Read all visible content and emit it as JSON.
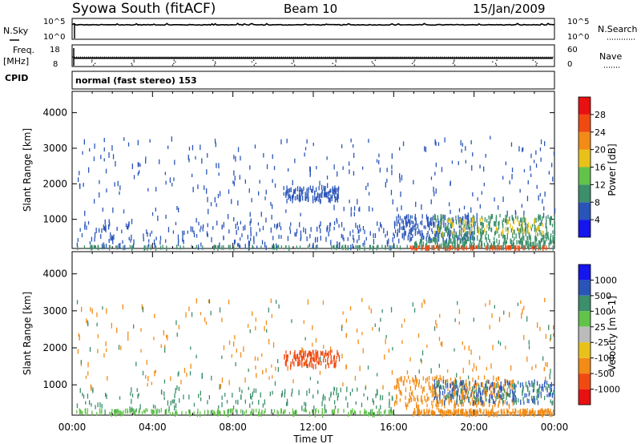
{
  "header": {
    "title": "Syowa South (fitACF)",
    "beam": "Beam 10",
    "date": "15/Jan/2009"
  },
  "chart_data": [
    {
      "type": "line",
      "panel": "noise",
      "left_label": "N.Sky",
      "right_label": "N.Search",
      "left_ticks": [
        "10^5",
        "10^0"
      ],
      "right_ticks": [
        "10^5",
        "10^0"
      ],
      "yscale": "log",
      "note": "noise level, near 10^4 throughout the day"
    },
    {
      "type": "line",
      "panel": "frequency",
      "left_label": "Freq.",
      "left_unit": "[MHz]",
      "left_ticks": [
        "18",
        "8"
      ],
      "left_ylim": [
        8,
        18
      ],
      "right_label": "Nave",
      "right_ticks": [
        "60",
        "0"
      ],
      "right_ylim": [
        0,
        60
      ],
      "freq_mhz": 11.8,
      "nave": 25
    },
    {
      "type": "table",
      "panel": "cpid",
      "label": "CPID",
      "value": "normal (fast stereo) 153"
    },
    {
      "type": "heatmap",
      "panel": "power",
      "ylabel": "Slant Range [km]",
      "xlim_hours": [
        0,
        24
      ],
      "ylim_km": [
        180,
        4600
      ],
      "yticks": [
        "1000",
        "2000",
        "3000",
        "4000"
      ],
      "colorbar_label": "Power [dB]",
      "colorbar_ticks": [
        "4",
        "8",
        "12",
        "16",
        "20",
        "24",
        "28"
      ],
      "colorbar_colors": [
        "#1515ee",
        "#2a55b8",
        "#3b8f6a",
        "#62c24a",
        "#e8c21a",
        "#f28c16",
        "#f04a12",
        "#e81010"
      ],
      "clusters": [
        {
          "t0": 0.2,
          "t1": 24,
          "r0": 180,
          "r1": 230,
          "color": "#3b8f6a",
          "count": 260
        },
        {
          "t0": 16.8,
          "t1": 23.6,
          "r0": 185,
          "r1": 215,
          "color": "#f04a12",
          "count": 220
        },
        {
          "t0": 0.2,
          "t1": 16,
          "r0": 200,
          "r1": 900,
          "color": "#2a55b8",
          "count": 230
        },
        {
          "t0": 0.2,
          "t1": 24,
          "r0": 900,
          "r1": 3300,
          "color": "#2a55b8",
          "count": 300
        },
        {
          "t0": 10.5,
          "t1": 13.3,
          "r0": 1500,
          "r1": 1900,
          "color": "#2a55b8",
          "count": 120
        },
        {
          "t0": 16,
          "t1": 20,
          "r0": 400,
          "r1": 1100,
          "color": "#2a55b8",
          "count": 220
        },
        {
          "t0": 18,
          "t1": 24,
          "r0": 450,
          "r1": 1100,
          "color": "#3b8f6a",
          "count": 260
        },
        {
          "t0": 18,
          "t1": 23.5,
          "r0": 600,
          "r1": 1000,
          "color": "#e8c21a",
          "count": 70
        },
        {
          "t0": 17,
          "t1": 24,
          "r0": 250,
          "r1": 450,
          "color": "#3b8f6a",
          "count": 160
        }
      ]
    },
    {
      "type": "heatmap",
      "panel": "velocity",
      "ylabel": "Slant Range [km]",
      "xlabel": "Time UT",
      "xticks": [
        "00:00",
        "04:00",
        "08:00",
        "12:00",
        "16:00",
        "20:00",
        "00:00"
      ],
      "xlim_hours": [
        0,
        24
      ],
      "ylim_km": [
        180,
        4600
      ],
      "yticks": [
        "1000",
        "2000",
        "3000",
        "4000"
      ],
      "colorbar_label": "Velocity [m s-1]",
      "colorbar_ticks": [
        "1000",
        "500",
        "100",
        "25",
        "-25",
        "-100",
        "-500",
        "-1000"
      ],
      "colorbar_colors": [
        "#1515ee",
        "#2a55b8",
        "#3b8f6a",
        "#62c24a",
        "#bbbbbb",
        "#e8c21a",
        "#f28c16",
        "#f04a12",
        "#e81010"
      ],
      "clusters": [
        {
          "t0": 0.2,
          "t1": 16,
          "r0": 180,
          "r1": 320,
          "color": "#62c24a",
          "count": 240
        },
        {
          "t0": 16.8,
          "t1": 24,
          "r0": 180,
          "r1": 320,
          "color": "#f28c16",
          "count": 260
        },
        {
          "t0": 0.2,
          "t1": 16,
          "r0": 250,
          "r1": 900,
          "color": "#3b8f6a",
          "count": 160
        },
        {
          "t0": 0.2,
          "t1": 24,
          "r0": 900,
          "r1": 3300,
          "color": "#f28c16",
          "count": 200
        },
        {
          "t0": 0.2,
          "t1": 24,
          "r0": 900,
          "r1": 3300,
          "color": "#3b8f6a",
          "count": 90
        },
        {
          "t0": 10.5,
          "t1": 13.3,
          "r0": 1500,
          "r1": 1900,
          "color": "#f04a12",
          "count": 120
        },
        {
          "t0": 16,
          "t1": 22,
          "r0": 400,
          "r1": 1200,
          "color": "#f28c16",
          "count": 300
        },
        {
          "t0": 18,
          "t1": 24,
          "r0": 500,
          "r1": 1100,
          "color": "#2a55b8",
          "count": 160
        },
        {
          "t0": 18,
          "t1": 24,
          "r0": 500,
          "r1": 1100,
          "color": "#3b8f6a",
          "count": 110
        }
      ]
    }
  ]
}
